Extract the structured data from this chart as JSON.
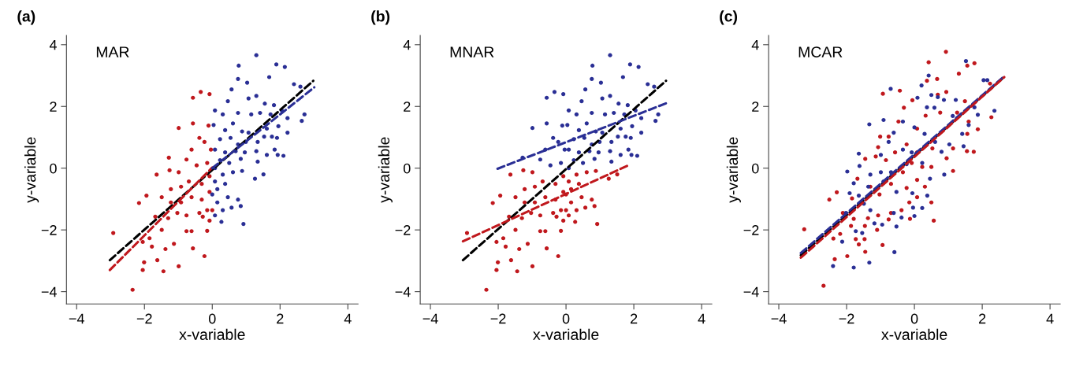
{
  "chart_data": [
    {
      "type": "scatter",
      "title": "(a)",
      "annotations": [
        "MAR"
      ],
      "xlabel": "x-variable",
      "ylabel": "y-variable",
      "xlim": [
        -4.3,
        4.3
      ],
      "ylim": [
        -4.4,
        4.3
      ],
      "xticks": [
        -4,
        -2,
        0,
        2,
        4
      ],
      "yticks": [
        -4,
        -2,
        0,
        2,
        4
      ],
      "marker": "circle",
      "series": [
        {
          "color": "#c0181d",
          "x": [
            -2.92,
            -2.35,
            -1.44,
            -0.99,
            -0.23,
            -0.57,
            -2.01,
            -2.05,
            -1.62,
            -1.85,
            -1.78,
            -1.13,
            -1.38,
            -2.05,
            -0.76,
            -0.15,
            -2.16,
            -1.94,
            -1.64,
            -1.28,
            -1.26,
            -0.99,
            -0.76,
            -0.57,
            -0.99,
            -0.57,
            -0.34,
            -0.08,
            -0.11,
            -0.38,
            -0.23,
            -0.61,
            -0.46,
            -0.15,
            -0.31,
            -0.69,
            -0.92,
            -1.22,
            -1.49,
            -1.22,
            -0.92,
            -0.61,
            -0.31,
            -0.08,
            -0.15,
            -0.38,
            -0.76,
            -1.03,
            -1.3,
            -1.68,
            -1.49,
            -0.61,
            0.0,
            -0.08,
            -0.28,
            -0.08,
            -0.04
          ],
          "values": [
            -2.1,
            -3.94,
            -3.34,
            -3.18,
            -2.85,
            -2.6,
            -3.05,
            -3.3,
            -2.98,
            -2.27,
            -2.54,
            -2.45,
            -2.62,
            -2.39,
            -2.04,
            -2.03,
            -1.13,
            -0.89,
            -0.21,
            0.34,
            -0.07,
            -0.13,
            0.28,
            1.45,
            1.3,
            2.28,
            2.47,
            2.4,
            1.38,
            0.98,
            0.85,
            0.6,
            0.09,
            0.17,
            -0.51,
            -0.43,
            -0.6,
            -0.68,
            -0.94,
            -1.11,
            -1.11,
            -0.94,
            -1.02,
            -0.77,
            -1.36,
            -1.45,
            -1.53,
            -1.45,
            -1.62,
            -1.57,
            -2.0,
            -2.04,
            -1.36,
            -1.7,
            -1.57,
            -0.26,
            0.6
          ]
        },
        {
          "color": "#2a2f95",
          "x": [
            1.3,
            0.78,
            1.89,
            2.14,
            1.68,
            0.76,
            1.03,
            0.57,
            2.41,
            2.6,
            1.3,
            1.07,
            0.46,
            0.08,
            1.55,
            1.82,
            2.05,
            2.72,
            2.64,
            2.22,
            0.31,
            0.76,
            1.15,
            1.41,
            1.72,
            0.04,
            0.38,
            0.61,
            0.88,
            1.07,
            1.61,
            1.95,
            2.22,
            1.53,
            1.76,
            1.91,
            0.23,
            0.54,
            0.76,
            0.99,
            1.34,
            0.08,
            0.38,
            0.69,
            0.96,
            1.3,
            1.61,
            1.84,
            1.93,
            2.1,
            0.23,
            0.5,
            0.84,
            1.34,
            0.08,
            0.31,
            0.61,
            0.88,
            1.26,
            1.51,
            0.08,
            0.38,
            0.15,
            0.46,
            0.15,
            0.76,
            0.31,
            0.57,
            0.84,
            0.08,
            0.27,
            0.92,
            0.0
          ],
          "values": [
            3.66,
            3.32,
            3.36,
            3.28,
            2.95,
            2.89,
            2.77,
            2.55,
            2.72,
            2.64,
            2.34,
            2.26,
            2.17,
            1.87,
            2.09,
            2.04,
            1.87,
            1.74,
            1.53,
            1.62,
            1.74,
            1.79,
            1.74,
            1.79,
            1.74,
            1.4,
            1.23,
            1.45,
            1.19,
            1.15,
            1.28,
            1.36,
            1.15,
            1.02,
            1.02,
            0.98,
            0.94,
            0.98,
            0.77,
            0.85,
            0.85,
            0.6,
            0.51,
            0.55,
            0.51,
            0.55,
            0.43,
            0.6,
            0.43,
            0.4,
            0.26,
            0.17,
            0.3,
            0.21,
            0.0,
            -0.21,
            -0.13,
            -0.09,
            -0.34,
            -0.2,
            -0.43,
            -0.51,
            -0.68,
            -0.94,
            -1.11,
            -1.02,
            -1.36,
            -1.28,
            -1.23,
            -1.53,
            -1.74,
            -1.81,
            -0.85
          ]
        },
        {
          "type": "line",
          "line_style": "dashed",
          "color": "#000000",
          "marker": "none",
          "x": [
            -3.02,
            2.98
          ],
          "values": [
            -2.98,
            2.83
          ]
        },
        {
          "type": "line",
          "line_style": "dashed",
          "color": "#c0181d",
          "marker": "none",
          "x": [
            -3.02,
            0.0
          ],
          "values": [
            -3.3,
            0.02
          ]
        },
        {
          "type": "line",
          "line_style": "dashed",
          "color": "#2a2f95",
          "marker": "none",
          "x": [
            0.0,
            3.01
          ],
          "values": [
            0.0,
            2.62
          ]
        }
      ]
    },
    {
      "type": "scatter",
      "title": "(b)",
      "annotations": [
        "MNAR"
      ],
      "xlabel": "x-variable",
      "ylabel": "y-variable",
      "xlim": [
        -4.3,
        4.3
      ],
      "ylim": [
        -4.4,
        4.3
      ],
      "xticks": [
        -4,
        -2,
        0,
        2,
        4
      ],
      "yticks": [
        -4,
        -2,
        0,
        2,
        4
      ],
      "marker": "circle",
      "series": [
        {
          "color": "#c0181d",
          "x": [
            -2.92,
            -2.35,
            -1.44,
            -0.99,
            -0.23,
            -0.57,
            -2.01,
            -2.05,
            -1.62,
            -1.85,
            -1.78,
            -1.13,
            -1.38,
            -2.05,
            -0.76,
            -0.15,
            -2.16,
            -1.94,
            -1.64,
            -1.26,
            -0.99,
            -0.31,
            -0.69,
            -0.92,
            -1.22,
            -1.49,
            -1.22,
            -0.92,
            -0.61,
            -0.31,
            -0.08,
            -0.15,
            -0.38,
            -0.76,
            -1.03,
            -1.3,
            -1.68,
            -1.49,
            -0.61,
            0.0,
            -0.08,
            -0.28,
            -0.08,
            0.31,
            0.61,
            0.88,
            1.26,
            1.51,
            0.08,
            0.38,
            0.15,
            0.46,
            0.15,
            0.76,
            0.31,
            0.57,
            0.84,
            0.08,
            0.27,
            0.92,
            0.0
          ],
          "values": [
            -2.1,
            -3.94,
            -3.34,
            -3.18,
            -2.85,
            -2.6,
            -3.05,
            -3.3,
            -2.98,
            -2.27,
            -2.54,
            -2.45,
            -2.62,
            -2.39,
            -2.04,
            -2.03,
            -1.13,
            -0.89,
            -0.21,
            -0.07,
            -0.13,
            -0.51,
            -0.43,
            -0.6,
            -0.68,
            -0.94,
            -1.11,
            -1.11,
            -0.94,
            -1.02,
            -0.77,
            -1.36,
            -1.45,
            -1.53,
            -1.45,
            -1.62,
            -1.57,
            -2.0,
            -2.04,
            -1.36,
            -1.7,
            -1.57,
            -0.26,
            -0.21,
            -0.13,
            -0.09,
            -0.34,
            -0.2,
            -0.43,
            -0.51,
            -0.68,
            -0.94,
            -1.11,
            -1.02,
            -1.36,
            -1.28,
            -1.23,
            -1.53,
            -1.74,
            -1.81,
            -0.85
          ]
        },
        {
          "color": "#2a2f95",
          "x": [
            -1.28,
            -0.76,
            -0.57,
            -0.99,
            -0.57,
            -0.34,
            -0.08,
            -0.11,
            -0.38,
            -0.23,
            -0.61,
            -0.46,
            -0.15,
            -0.04,
            1.3,
            0.78,
            1.89,
            2.14,
            1.68,
            0.76,
            1.03,
            0.57,
            2.41,
            2.6,
            1.3,
            1.07,
            0.46,
            0.08,
            1.55,
            1.82,
            2.05,
            2.72,
            2.64,
            2.22,
            0.31,
            0.76,
            1.15,
            1.41,
            1.72,
            0.04,
            0.38,
            0.61,
            0.88,
            1.07,
            1.61,
            1.95,
            2.22,
            1.53,
            1.76,
            1.91,
            0.23,
            0.54,
            0.76,
            0.99,
            1.34,
            0.08,
            0.38,
            0.69,
            0.96,
            1.3,
            1.61,
            1.84,
            1.93,
            2.1,
            0.23,
            0.5,
            0.84,
            1.34,
            0.08
          ],
          "values": [
            0.34,
            0.28,
            1.45,
            1.3,
            2.28,
            2.47,
            2.4,
            1.38,
            0.98,
            0.85,
            0.6,
            0.09,
            0.17,
            0.6,
            3.66,
            3.32,
            3.36,
            3.28,
            2.95,
            2.89,
            2.77,
            2.55,
            2.72,
            2.64,
            2.34,
            2.26,
            2.17,
            1.87,
            2.09,
            2.04,
            1.87,
            1.74,
            1.53,
            1.62,
            1.74,
            1.79,
            1.74,
            1.79,
            1.74,
            1.4,
            1.23,
            1.45,
            1.19,
            1.15,
            1.28,
            1.36,
            1.15,
            1.02,
            1.02,
            0.98,
            0.94,
            0.98,
            0.77,
            0.85,
            0.85,
            0.6,
            0.51,
            0.55,
            0.51,
            0.55,
            0.43,
            0.6,
            0.43,
            0.4,
            0.26,
            0.17,
            0.3,
            0.21,
            0.0
          ]
        },
        {
          "type": "line",
          "line_style": "dashed",
          "color": "#000000",
          "marker": "none",
          "x": [
            -3.04,
            2.95
          ],
          "values": [
            -2.98,
            2.83
          ]
        },
        {
          "type": "line",
          "line_style": "dashed",
          "color": "#c0181d",
          "marker": "none",
          "x": [
            -3.04,
            1.85
          ],
          "values": [
            -2.37,
            0.1
          ]
        },
        {
          "type": "line",
          "line_style": "dashed",
          "color": "#2a2f95",
          "marker": "none",
          "x": [
            -2.02,
            2.95
          ],
          "values": [
            -0.02,
            2.1
          ]
        }
      ]
    },
    {
      "type": "scatter",
      "title": "(c)",
      "annotations": [
        "MCAR"
      ],
      "xlabel": "x-variable",
      "ylabel": "y-variable",
      "xlim": [
        -4.3,
        4.3
      ],
      "ylim": [
        -4.4,
        4.3
      ],
      "xticks": [
        -4,
        -2,
        0,
        2,
        4
      ],
      "yticks": [
        -4,
        -2,
        0,
        2,
        4
      ],
      "marker": "circle",
      "series": [
        {
          "color": "#c0181d",
          "x": [
            0.93,
            0.42,
            1.77,
            1.56,
            1.31,
            0.67,
            0.37,
            -0.93,
            -0.43,
            0.94,
            2.23,
            0.69,
            -0.06,
            1.49,
            -0.31,
            2.27,
            1.87,
            1.6,
            -0.47,
            -1.01,
            -0.76,
            0.08,
            0.33,
            0.76,
            1.26,
            1.56,
            1.75,
            1.55,
            1.14,
            0.95,
            1.14,
            0.53,
            0.08,
            -0.23,
            -0.57,
            -1.07,
            -1.14,
            -0.84,
            -0.34,
            -0.08,
            0.23,
            0.5,
            -1.45,
            -1.68,
            -1.3,
            -1.03,
            -0.69,
            -0.23,
            0.08,
            0.31,
            0.08,
            0.5,
            -0.15,
            -0.38,
            -0.69,
            -1.07,
            -1.37,
            -1.79,
            -2.11,
            -2.29,
            -2.51,
            -1.84,
            -1.46,
            -1.1,
            -0.76,
            -0.13,
            0.57,
            -1.87,
            -2.19,
            -1.73,
            -1.47,
            -1.64,
            -0.94,
            -1.45,
            -1.98,
            -2.35,
            -2.39,
            -3.25,
            -2.68
          ],
          "values": [
            3.77,
            3.43,
            3.4,
            3.32,
            3.06,
            2.89,
            2.83,
            2.41,
            2.51,
            2.47,
            2.74,
            2.38,
            2.2,
            2.17,
            1.96,
            1.65,
            1.26,
            1.51,
            1.51,
            1.02,
            1.02,
            1.28,
            1.7,
            1.8,
            1.8,
            1.11,
            0.53,
            0.55,
            0.64,
            0.32,
            -0.09,
            0.64,
            0.51,
            0.77,
            0.51,
            0.68,
            0.38,
            0.26,
            -0.13,
            0.17,
            0.04,
            0.04,
            0.3,
            -0.34,
            -0.6,
            -0.85,
            -0.51,
            -0.64,
            -0.38,
            -0.6,
            -0.94,
            -1.11,
            -1.11,
            -1.36,
            -1.45,
            -1.53,
            -1.62,
            -1.64,
            -1.45,
            -0.78,
            -1.02,
            -0.98,
            -1.87,
            -2.0,
            -1.66,
            -1.64,
            -1.7,
            -1.87,
            -2.13,
            -2.3,
            -2.3,
            -2.47,
            -2.49,
            -2.71,
            -2.85,
            -2.95,
            -2.28,
            -1.98,
            -3.81
          ]
        },
        {
          "color": "#2a2f95",
          "x": [
            1.52,
            0.42,
            0.21,
            -0.7,
            0.5,
            2.04,
            2.15,
            0.69,
            0.87,
            1.22,
            0.09,
            1.77,
            2.36,
            1.87,
            1.13,
            0.59,
            0.37,
            -0.91,
            -1.33,
            -0.34,
            0.0,
            0.3,
            0.61,
            1.41,
            1.6,
            1.45,
            1.03,
            0.8,
            0.88,
            -0.61,
            -0.76,
            -0.34,
            -0.08,
            -0.99,
            -1.64,
            -1.62,
            -1.98,
            -1.3,
            -0.99,
            -0.69,
            -0.23,
            0.23,
            0.46,
            -1.79,
            -1.36,
            -0.91,
            -0.53,
            -0.06,
            0.38,
            0.23,
            -0.04,
            -0.61,
            -0.38,
            0.0,
            -0.53,
            -0.95,
            -1.18,
            -1.3,
            -1.49,
            -1.91,
            -1.64,
            -2.02,
            -2.13,
            -1.73,
            -1.54,
            -0.59,
            -1.33,
            -1.79,
            -2.4
          ],
          "values": [
            3.47,
            3.0,
            2.68,
            2.57,
            2.37,
            2.85,
            2.85,
            2.3,
            2.21,
            2.21,
            2.28,
            1.97,
            1.86,
            1.73,
            1.69,
            1.96,
            1.97,
            1.56,
            1.42,
            1.51,
            1.32,
            1.11,
            0.85,
            1.11,
            1.4,
            0.71,
            0.77,
            0.53,
            -0.21,
            1.15,
            0.85,
            0.6,
            0.51,
            0.43,
            0.47,
            0.07,
            -0.11,
            -0.21,
            -0.13,
            -0.13,
            0.13,
            0.17,
            -0.34,
            -0.49,
            -0.6,
            -0.43,
            -0.77,
            -0.81,
            -0.89,
            -1.29,
            -1.28,
            -1.45,
            -1.6,
            -1.55,
            -1.89,
            -1.83,
            -1.79,
            -1.36,
            -1.15,
            -0.81,
            -0.89,
            -1.45,
            -2.38,
            -2.04,
            -2.1,
            -2.72,
            -3.06,
            -3.22,
            -3.17
          ]
        },
        {
          "type": "line",
          "line_style": "dashed",
          "color": "#000000",
          "marker": "none",
          "x": [
            -3.35,
            2.65
          ],
          "values": [
            -2.82,
            2.96
          ]
        },
        {
          "type": "line",
          "line_style": "dashed",
          "color": "#2a2f95",
          "marker": "none",
          "x": [
            -3.35,
            2.65
          ],
          "values": [
            -2.75,
            2.98
          ]
        },
        {
          "type": "line",
          "line_style": "dashed",
          "color": "#c0181d",
          "marker": "none",
          "x": [
            -3.35,
            2.65
          ],
          "values": [
            -2.9,
            2.95
          ]
        }
      ]
    }
  ]
}
